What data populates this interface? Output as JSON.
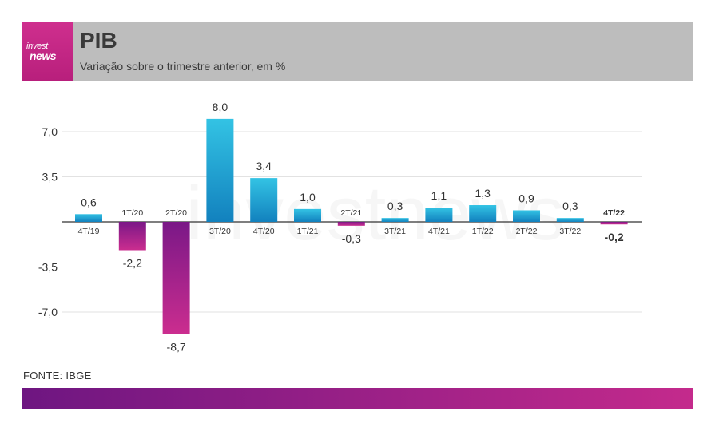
{
  "brand": {
    "line1": "invest",
    "line2": "news"
  },
  "header": {
    "title": "PIB",
    "subtitle": "Variação sobre o trimestre anterior, em %"
  },
  "watermark": "investnews",
  "source": "FONTE: IBGE",
  "colors": {
    "positive_top": "#33c3e4",
    "positive_bottom": "#1281be",
    "negative_top": "#7a1887",
    "negative_bottom": "#cb2d8f",
    "grid": "#e2e2e2",
    "axis": "#333333"
  },
  "chart_data": {
    "type": "bar",
    "title": "PIB",
    "subtitle": "Variação sobre o trimestre anterior, em %",
    "categories": [
      "4T/19",
      "1T/20",
      "2T/20",
      "3T/20",
      "4T/20",
      "1T/21",
      "2T/21",
      "3T/21",
      "4T/21",
      "1T/22",
      "2T/22",
      "3T/22",
      "4T/22"
    ],
    "values": [
      0.6,
      -2.2,
      -8.7,
      8.0,
      3.4,
      1.0,
      -0.3,
      0.3,
      1.1,
      1.3,
      0.9,
      0.3,
      -0.2
    ],
    "value_labels": [
      "0,6",
      "-2,2",
      "-8,7",
      "8,0",
      "3,4",
      "1,0",
      "-0,3",
      "0,3",
      "1,1",
      "1,3",
      "0,9",
      "0,3",
      "-0,2"
    ],
    "highlight": "4T/22",
    "yticks": [
      7.0,
      3.5,
      -3.5,
      -7.0
    ],
    "ytick_labels": [
      "7,0",
      "3,5",
      "-3,5",
      "-7,0"
    ],
    "ylim": [
      -8.7,
      8.0
    ],
    "xlabel": "",
    "ylabel": "",
    "grid": true
  }
}
